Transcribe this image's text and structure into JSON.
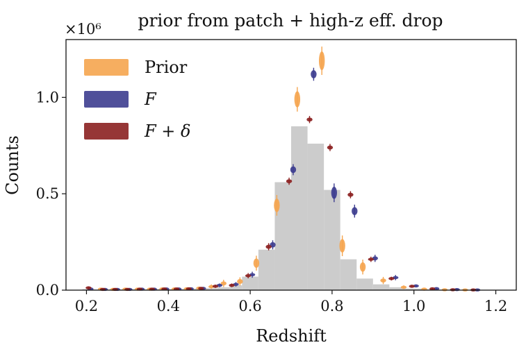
{
  "chart_data": {
    "type": "bar",
    "title": "prior from patch + high-z eff. drop",
    "xlabel": "Redshift",
    "ylabel": "Counts",
    "y_multiplier_label": "×10⁶",
    "xlim": [
      0.15,
      1.25
    ],
    "ylim": [
      0,
      1.3
    ],
    "xticks": [
      "0.2",
      "0.4",
      "0.6",
      "0.8",
      "1.0",
      "1.2"
    ],
    "xtick_values": [
      0.2,
      0.4,
      0.6,
      0.8,
      1.0,
      1.2
    ],
    "yticks": [
      "0.0",
      "0.5",
      "1.0"
    ],
    "ytick_values": [
      0.0,
      0.5,
      1.0
    ],
    "legend_position": "top-left",
    "grid": false,
    "histogram": {
      "bin_edges": [
        0.19,
        0.22,
        0.25,
        0.28,
        0.31,
        0.34,
        0.37,
        0.4,
        0.43,
        0.46,
        0.49,
        0.52,
        0.55,
        0.58,
        0.62,
        0.66,
        0.7,
        0.74,
        0.78,
        0.82,
        0.86,
        0.9,
        0.94,
        0.98,
        1.02,
        1.06,
        1.1,
        1.14,
        1.18,
        1.22
      ],
      "counts": [
        0.005,
        0.004,
        0.004,
        0.004,
        0.005,
        0.005,
        0.006,
        0.006,
        0.007,
        0.008,
        0.01,
        0.015,
        0.025,
        0.07,
        0.21,
        0.56,
        0.85,
        0.76,
        0.52,
        0.16,
        0.06,
        0.03,
        0.015,
        0.008,
        0.005,
        0.003,
        0.002,
        0.001,
        0.0
      ],
      "color": "#cccccc"
    },
    "series": [
      {
        "name": "Prior",
        "color": "#f5a54f",
        "points": [
          {
            "x": 0.235,
            "y": 0.005,
            "err": 0.004
          },
          {
            "x": 0.265,
            "y": 0.004,
            "err": 0.004
          },
          {
            "x": 0.295,
            "y": 0.005,
            "err": 0.004
          },
          {
            "x": 0.325,
            "y": 0.005,
            "err": 0.004
          },
          {
            "x": 0.355,
            "y": 0.005,
            "err": 0.004
          },
          {
            "x": 0.385,
            "y": 0.006,
            "err": 0.004
          },
          {
            "x": 0.415,
            "y": 0.006,
            "err": 0.004
          },
          {
            "x": 0.445,
            "y": 0.007,
            "err": 0.004
          },
          {
            "x": 0.475,
            "y": 0.01,
            "err": 0.005
          },
          {
            "x": 0.505,
            "y": 0.018,
            "err": 0.008
          },
          {
            "x": 0.535,
            "y": 0.035,
            "err": 0.015
          },
          {
            "x": 0.575,
            "y": 0.045,
            "err": 0.018
          },
          {
            "x": 0.615,
            "y": 0.14,
            "err": 0.035
          },
          {
            "x": 0.665,
            "y": 0.44,
            "err": 0.05
          },
          {
            "x": 0.715,
            "y": 0.99,
            "err": 0.06
          },
          {
            "x": 0.775,
            "y": 1.19,
            "err": 0.07
          },
          {
            "x": 0.825,
            "y": 0.23,
            "err": 0.05
          },
          {
            "x": 0.875,
            "y": 0.12,
            "err": 0.035
          },
          {
            "x": 0.925,
            "y": 0.05,
            "err": 0.015
          },
          {
            "x": 0.975,
            "y": 0.015,
            "err": 0.006
          },
          {
            "x": 1.025,
            "y": 0.005,
            "err": 0.003
          },
          {
            "x": 1.075,
            "y": 0.002,
            "err": 0.002
          },
          {
            "x": 1.125,
            "y": 0.001,
            "err": 0.001
          }
        ]
      },
      {
        "name": "F",
        "color": "#3d3d8f",
        "points": [
          {
            "x": 0.21,
            "y": 0.006,
            "err": 0.004
          },
          {
            "x": 0.245,
            "y": 0.004,
            "err": 0.003
          },
          {
            "x": 0.275,
            "y": 0.004,
            "err": 0.003
          },
          {
            "x": 0.305,
            "y": 0.004,
            "err": 0.003
          },
          {
            "x": 0.335,
            "y": 0.005,
            "err": 0.003
          },
          {
            "x": 0.365,
            "y": 0.005,
            "err": 0.003
          },
          {
            "x": 0.395,
            "y": 0.006,
            "err": 0.003
          },
          {
            "x": 0.425,
            "y": 0.006,
            "err": 0.003
          },
          {
            "x": 0.455,
            "y": 0.007,
            "err": 0.003
          },
          {
            "x": 0.485,
            "y": 0.009,
            "err": 0.003
          },
          {
            "x": 0.525,
            "y": 0.025,
            "err": 0.006
          },
          {
            "x": 0.565,
            "y": 0.03,
            "err": 0.008
          },
          {
            "x": 0.605,
            "y": 0.08,
            "err": 0.012
          },
          {
            "x": 0.655,
            "y": 0.235,
            "err": 0.02
          },
          {
            "x": 0.705,
            "y": 0.625,
            "err": 0.025
          },
          {
            "x": 0.755,
            "y": 1.12,
            "err": 0.03
          },
          {
            "x": 0.805,
            "y": 0.505,
            "err": 0.045
          },
          {
            "x": 0.855,
            "y": 0.41,
            "err": 0.03
          },
          {
            "x": 0.905,
            "y": 0.165,
            "err": 0.015
          },
          {
            "x": 0.955,
            "y": 0.065,
            "err": 0.01
          },
          {
            "x": 1.005,
            "y": 0.022,
            "err": 0.004
          },
          {
            "x": 1.055,
            "y": 0.008,
            "err": 0.003
          },
          {
            "x": 1.105,
            "y": 0.003,
            "err": 0.002
          },
          {
            "x": 1.155,
            "y": 0.001,
            "err": 0.001
          }
        ]
      },
      {
        "name": "F + δ",
        "color": "#8b2020",
        "points": [
          {
            "x": 0.205,
            "y": 0.012,
            "err": 0.004
          },
          {
            "x": 0.24,
            "y": 0.004,
            "err": 0.003
          },
          {
            "x": 0.27,
            "y": 0.004,
            "err": 0.003
          },
          {
            "x": 0.3,
            "y": 0.004,
            "err": 0.003
          },
          {
            "x": 0.33,
            "y": 0.005,
            "err": 0.003
          },
          {
            "x": 0.36,
            "y": 0.005,
            "err": 0.003
          },
          {
            "x": 0.39,
            "y": 0.006,
            "err": 0.003
          },
          {
            "x": 0.42,
            "y": 0.006,
            "err": 0.003
          },
          {
            "x": 0.45,
            "y": 0.007,
            "err": 0.003
          },
          {
            "x": 0.48,
            "y": 0.009,
            "err": 0.003
          },
          {
            "x": 0.515,
            "y": 0.02,
            "err": 0.005
          },
          {
            "x": 0.555,
            "y": 0.025,
            "err": 0.006
          },
          {
            "x": 0.595,
            "y": 0.075,
            "err": 0.01
          },
          {
            "x": 0.645,
            "y": 0.225,
            "err": 0.015
          },
          {
            "x": 0.695,
            "y": 0.565,
            "err": 0.015
          },
          {
            "x": 0.745,
            "y": 0.885,
            "err": 0.015
          },
          {
            "x": 0.795,
            "y": 0.74,
            "err": 0.015
          },
          {
            "x": 0.845,
            "y": 0.495,
            "err": 0.015
          },
          {
            "x": 0.895,
            "y": 0.16,
            "err": 0.01
          },
          {
            "x": 0.945,
            "y": 0.06,
            "err": 0.006
          },
          {
            "x": 0.995,
            "y": 0.02,
            "err": 0.004
          },
          {
            "x": 1.045,
            "y": 0.007,
            "err": 0.003
          },
          {
            "x": 1.095,
            "y": 0.002,
            "err": 0.002
          },
          {
            "x": 1.145,
            "y": 0.001,
            "err": 0.001
          }
        ]
      }
    ]
  }
}
